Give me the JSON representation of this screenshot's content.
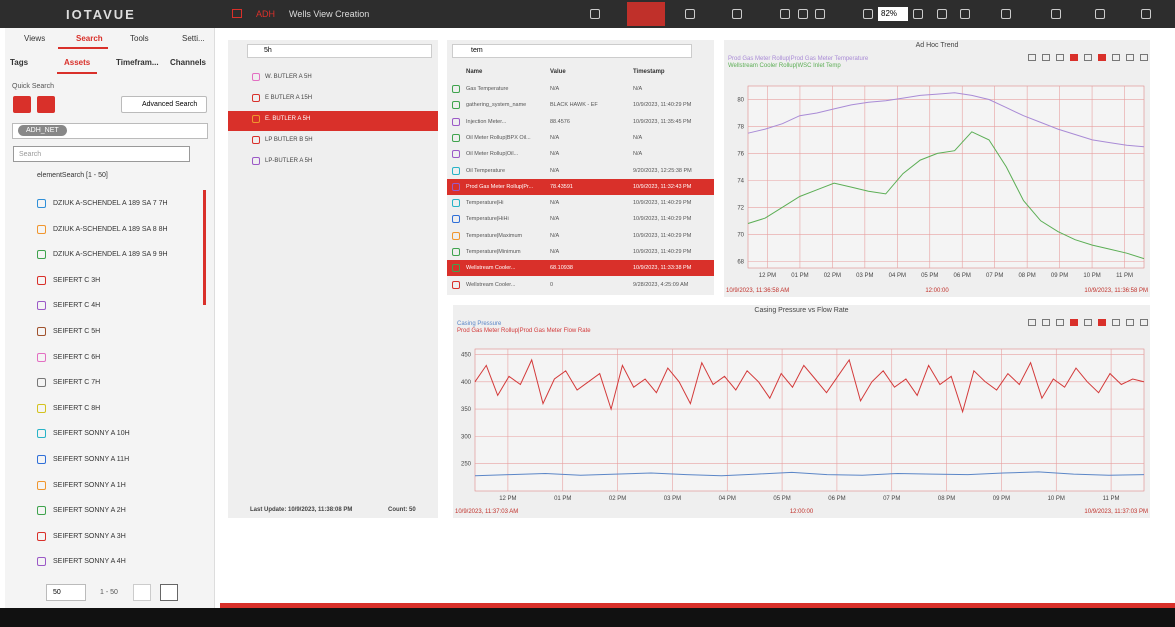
{
  "topbar": {
    "logo": "IOTAVUE",
    "breadcrumb": [
      "ADH",
      "Wells View Creation"
    ],
    "zoom": "82%"
  },
  "sidebar": {
    "tabs": [
      "Views",
      "Search",
      "Tools",
      "Setti..."
    ],
    "subtabs": [
      "Tags",
      "Assets",
      "Timefram...",
      "Channels"
    ],
    "quick_search": "Quick Search",
    "advanced_search": "Advanced Search",
    "chip": "ADH_NET",
    "search_placeholder": "Search",
    "result_header": "elementSearch [1 - 50]",
    "items": [
      {
        "label": "DZIUK A-SCHENDEL A 189 SA 7 7H",
        "color": "#2f8fd8"
      },
      {
        "label": "DZIUK A-SCHENDEL A 189 SA 8 8H",
        "color": "#f0962e"
      },
      {
        "label": "DZIUK A-SCHENDEL A 189 SA 9 9H",
        "color": "#3fa34d"
      },
      {
        "label": "SEIFERT C 3H",
        "color": "#d9302a"
      },
      {
        "label": "SEIFERT C 4H",
        "color": "#9b59c7"
      },
      {
        "label": "SEIFERT C 5H",
        "color": "#a0522d"
      },
      {
        "label": "SEIFERT C 6H",
        "color": "#e36fc2"
      },
      {
        "label": "SEIFERT C 7H",
        "color": "#777777"
      },
      {
        "label": "SEIFERT C 8H",
        "color": "#d4c21e"
      },
      {
        "label": "SEIFERT SONNY A 10H",
        "color": "#27b3c7"
      },
      {
        "label": "SEIFERT SONNY A 11H",
        "color": "#2f6fd8"
      },
      {
        "label": "SEIFERT SONNY A 1H",
        "color": "#f0962e"
      },
      {
        "label": "SEIFERT SONNY A 2H",
        "color": "#3fa34d"
      },
      {
        "label": "SEIFERT SONNY A 3H",
        "color": "#d9302a"
      },
      {
        "label": "SEIFERT SONNY A 4H",
        "color": "#9b59c7"
      }
    ],
    "page_size": "50",
    "range": "1 - 50"
  },
  "tree": {
    "filter": "5h",
    "items": [
      {
        "label": "W. BUTLER A 5H",
        "color": "#e36fc2"
      },
      {
        "label": "E BUTLER A 15H",
        "color": "#d9302a"
      },
      {
        "label": "E. BUTLER A 5H",
        "color": "#f0962e",
        "selected": true
      },
      {
        "label": "LP BUTLER B 5H",
        "color": "#d9302a"
      },
      {
        "label": "LP-BUTLER A 5H",
        "color": "#9b59c7"
      }
    ],
    "last_update": "Last Update: 10/9/2023, 11:38:08 PM",
    "count": "Count: 50"
  },
  "table": {
    "filter": "tem",
    "columns": [
      "Name",
      "Value",
      "Timestamp"
    ],
    "rows": [
      {
        "cells": [
          "Gas Temperature",
          "N/A",
          "N/A"
        ],
        "color": "#3fa34d"
      },
      {
        "cells": [
          "gathering_system_name",
          "BLACK HAWK - EF",
          "10/9/2023, 11:40:29 PM"
        ],
        "color": "#3fa34d"
      },
      {
        "cells": [
          "Injection Meter...",
          "88.4576",
          "10/9/2023, 11:35:45 PM"
        ],
        "color": "#9b59c7"
      },
      {
        "cells": [
          "Oil Meter Rollup|BPX Oil...",
          "N/A",
          "N/A"
        ],
        "color": "#3fa34d"
      },
      {
        "cells": [
          "Oil Meter Rollup|Oil...",
          "N/A",
          "N/A"
        ],
        "color": "#9b59c7"
      },
      {
        "cells": [
          "Oil Temperature",
          "N/A",
          "9/20/2023, 12:25:38 PM"
        ],
        "color": "#27b3c7"
      },
      {
        "cells": [
          "Prod Gas Meter Rollup|Pr...",
          "78.43591",
          "10/9/2023, 11:32:43 PM"
        ],
        "color": "#9b59c7",
        "selected": true
      },
      {
        "cells": [
          "Temperature|Hi",
          "N/A",
          "10/9/2023, 11:40:29 PM"
        ],
        "color": "#27b3c7"
      },
      {
        "cells": [
          "Temperature|HiHi",
          "N/A",
          "10/9/2023, 11:40:29 PM"
        ],
        "color": "#2f6fd8"
      },
      {
        "cells": [
          "Temperature|Maximum",
          "N/A",
          "10/9/2023, 11:40:29 PM"
        ],
        "color": "#f0962e"
      },
      {
        "cells": [
          "Temperature|Minimum",
          "N/A",
          "10/9/2023, 11:40:29 PM"
        ],
        "color": "#3fa34d"
      },
      {
        "cells": [
          "Wellstream Cooler...",
          "68.10938",
          "10/9/2023, 11:33:38 PM"
        ],
        "color": "#3fa34d",
        "selected": true
      },
      {
        "cells": [
          "Wellstream Cooler...",
          "0",
          "9/28/2023, 4:25:09 AM"
        ],
        "color": "#d9302a"
      }
    ]
  },
  "trend": {
    "title": "Ad Hoc Trend",
    "ylim": [
      67.5,
      81
    ],
    "yticks": [
      68,
      70,
      72,
      74,
      76,
      78,
      80
    ],
    "xlabels": [
      "12 PM",
      "01 PM",
      "02 PM",
      "03 PM",
      "04 PM",
      "05 PM",
      "06 PM",
      "07 PM",
      "08 PM",
      "09 PM",
      "10 PM",
      "11 PM"
    ],
    "footer": [
      "10/9/2023, 11:36:58 AM",
      "12:00:00",
      "10/9/2023, 11:36:58 PM"
    ],
    "series": [
      {
        "name": "Prod Gas Meter Rollup|Prod Gas Meter Temperature",
        "color": "#a98bd6",
        "values": [
          77.5,
          77.8,
          78.2,
          78.8,
          79.0,
          79.3,
          79.6,
          79.8,
          79.9,
          80.1,
          80.3,
          80.4,
          80.5,
          80.3,
          80.0,
          79.4,
          78.8,
          78.3,
          77.8,
          77.4,
          77.0,
          76.8,
          76.6,
          76.5
        ]
      },
      {
        "name": "Wellstream Cooler Rollup|WSC Inlet Temp",
        "color": "#5cae55",
        "values": [
          70.8,
          71.2,
          72.0,
          72.8,
          73.3,
          73.8,
          73.5,
          73.2,
          73.0,
          74.5,
          75.5,
          76.0,
          76.2,
          77.6,
          77.0,
          75.0,
          72.5,
          71.0,
          70.2,
          69.6,
          69.2,
          68.9,
          68.6,
          68.2
        ]
      }
    ]
  },
  "casing": {
    "title": "Casing Pressure vs Flow Rate",
    "ylim": [
      200,
      460
    ],
    "yticks": [
      250,
      300,
      350,
      400,
      450
    ],
    "xlabels": [
      "12 PM",
      "01 PM",
      "02 PM",
      "03 PM",
      "04 PM",
      "05 PM",
      "06 PM",
      "07 PM",
      "08 PM",
      "09 PM",
      "10 PM",
      "11 PM"
    ],
    "footer": [
      "10/9/2023, 11:37:03 AM",
      "12:00:00",
      "10/9/2023, 11:37:03 PM"
    ],
    "series": [
      {
        "name": "Casing Pressure",
        "color": "#5b86c7",
        "values": [
          228,
          230,
          232,
          229,
          231,
          233,
          230,
          228,
          231,
          234,
          230,
          229,
          232,
          231,
          230,
          233,
          235,
          231,
          229,
          230
        ]
      },
      {
        "name": "Prod Gas Meter Rollup|Prod Gas Meter Flow Rate",
        "color": "#d33a3a",
        "values": [
          400,
          430,
          375,
          410,
          395,
          440,
          360,
          405,
          420,
          385,
          400,
          415,
          350,
          430,
          390,
          405,
          380,
          425,
          400,
          360,
          435,
          395,
          410,
          385,
          420,
          400,
          370,
          415,
          390,
          430,
          405,
          380,
          410,
          440,
          365,
          400,
          420,
          390,
          405,
          375,
          430,
          395,
          410,
          345,
          420,
          400,
          385,
          415,
          395,
          435,
          370,
          405,
          390,
          425,
          400,
          380,
          415,
          395,
          405,
          400
        ]
      }
    ]
  }
}
